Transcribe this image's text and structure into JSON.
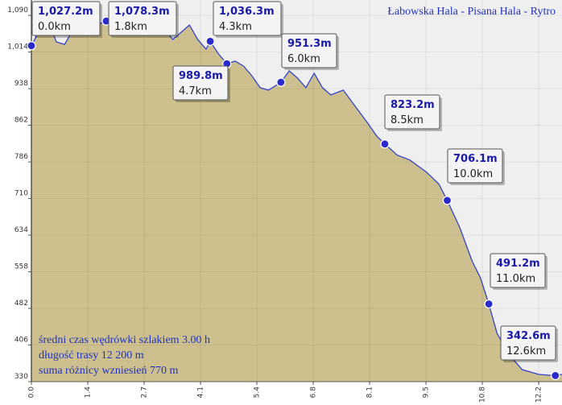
{
  "chart_data": {
    "type": "area",
    "title": "Łabowska Hala - Pisana Hala - Rytro",
    "notes": [
      "średni czas wędrówki szlakiem 3.00 h",
      "długość trasy 12 200 m",
      "suma różnicy wzniesień 770 m"
    ],
    "xlim": [
      0,
      12.76
    ],
    "ylim": [
      330,
      1122
    ],
    "xticks": [
      {
        "value": 0,
        "label": "0.0"
      },
      {
        "value": 1.356,
        "label": "1.4"
      },
      {
        "value": 2.711,
        "label": "2.7"
      },
      {
        "value": 4.067,
        "label": "4.1"
      },
      {
        "value": 5.422,
        "label": "5.4"
      },
      {
        "value": 6.778,
        "label": "6.8"
      },
      {
        "value": 8.133,
        "label": "8.1"
      },
      {
        "value": 9.489,
        "label": "9.5"
      },
      {
        "value": 10.844,
        "label": "10.8"
      },
      {
        "value": 12.2,
        "label": "12.2"
      }
    ],
    "yticks": [
      {
        "value": 330,
        "label": "330"
      },
      {
        "value": 406,
        "label": "406"
      },
      {
        "value": 482,
        "label": "482"
      },
      {
        "value": 558,
        "label": "558"
      },
      {
        "value": 634,
        "label": "634"
      },
      {
        "value": 710,
        "label": "710"
      },
      {
        "value": 786,
        "label": "786"
      },
      {
        "value": 862,
        "label": "862"
      },
      {
        "value": 938,
        "label": "938"
      },
      {
        "value": 1014,
        "label": "1,014"
      },
      {
        "value": 1090,
        "label": "1,090"
      }
    ],
    "grid": true,
    "profile": {
      "color": "#3344cc",
      "fill": "#cdc08e",
      "x": [
        0,
        0.2,
        0.4,
        0.6,
        0.8,
        1.0,
        1.2,
        1.4,
        1.6,
        1.8,
        2.0,
        2.2,
        2.4,
        2.7,
        3.0,
        3.2,
        3.4,
        3.6,
        3.8,
        4.0,
        4.2,
        4.3,
        4.5,
        4.7,
        4.9,
        5.1,
        5.3,
        5.5,
        5.7,
        6.0,
        6.2,
        6.4,
        6.6,
        6.8,
        7.0,
        7.2,
        7.5,
        7.8,
        8.1,
        8.3,
        8.5,
        8.8,
        9.1,
        9.5,
        9.8,
        10.0,
        10.3,
        10.6,
        10.8,
        11.0,
        11.2,
        11.5,
        11.8,
        12.2,
        12.6,
        12.76
      ],
      "values": [
        1027,
        1060,
        1080,
        1035,
        1030,
        1060,
        1085,
        1070,
        1072,
        1078,
        1090,
        1095,
        1085,
        1075,
        1085,
        1060,
        1040,
        1055,
        1070,
        1040,
        1020,
        1036,
        1010,
        990,
        995,
        985,
        965,
        940,
        935,
        951,
        975,
        960,
        940,
        970,
        940,
        925,
        935,
        900,
        865,
        840,
        823,
        800,
        790,
        765,
        740,
        706,
        650,
        580,
        545,
        491,
        430,
        385,
        355,
        345,
        342.6,
        345
      ]
    },
    "waypoints": {
      "color": "#2a2acc",
      "x": [
        0,
        1.8,
        4.3,
        4.7,
        6.0,
        8.5,
        10.0,
        11.0,
        12.6
      ],
      "x_labels": [
        "0.0km",
        "1.8km",
        "4.3km",
        "4.7km",
        "6.0km",
        "8.5km",
        "10.0km",
        "11.0km",
        "12.6km"
      ],
      "values": [
        1027.2,
        1078.3,
        1036.3,
        989.8,
        951.3,
        823.2,
        706.1,
        491.2,
        342.6
      ],
      "value_labels": [
        "1,027.2m",
        "1,078.3m",
        "1,036.3m",
        "989.8m",
        "951.3m",
        "823.2m",
        "706.1m",
        "491.2m",
        "342.6m"
      ]
    }
  }
}
